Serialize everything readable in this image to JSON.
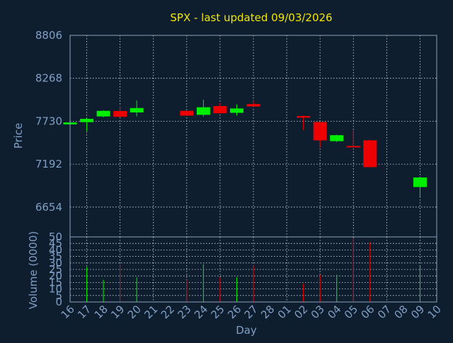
{
  "chart_data": {
    "type": "candlestick",
    "title": "SPX - last updated 09/03/2026",
    "xlabel": "Day",
    "ylabel_price": "Price",
    "ylabel_volume": "Volume (0000)",
    "x_ticks": [
      "16",
      "17",
      "18",
      "19",
      "20",
      "21",
      "22",
      "23",
      "24",
      "25",
      "26",
      "27",
      "28",
      "01",
      "02",
      "03",
      "04",
      "05",
      "06",
      "07",
      "08",
      "09",
      "10"
    ],
    "x_grid_ticks": [
      "17",
      "19",
      "21",
      "23",
      "25",
      "27",
      "01",
      "03",
      "05",
      "07",
      "09"
    ],
    "price_ticks": [
      8806,
      8268,
      7730,
      7192,
      6654
    ],
    "price_ylim": [
      6280,
      8806
    ],
    "volume_ticks": [
      0,
      5,
      10,
      15,
      20,
      25,
      30,
      35,
      40,
      45,
      50
    ],
    "volume_ylim": [
      0,
      50
    ],
    "grid": true,
    "colors": {
      "up": "#00ee00",
      "down": "#ee0000",
      "title": "#f2e600",
      "axis_text": "#7f9fc4",
      "background": "#0f1e2f"
    },
    "candles": [
      {
        "day": "16",
        "open": 7690,
        "close": 7715,
        "high": 7722,
        "low": 7685,
        "volume": 0
      },
      {
        "day": "17",
        "open": 7718,
        "close": 7760,
        "high": 7768,
        "low": 7605,
        "volume": 27
      },
      {
        "day": "18",
        "open": 7790,
        "close": 7860,
        "high": 7868,
        "low": 7780,
        "volume": 17
      },
      {
        "day": "19",
        "open": 7858,
        "close": 7785,
        "high": 7920,
        "low": 7775,
        "volume": 29
      },
      {
        "day": "20",
        "open": 7840,
        "close": 7895,
        "high": 7990,
        "low": 7790,
        "volume": 19
      },
      {
        "day": "23",
        "open": 7860,
        "close": 7800,
        "high": 7870,
        "low": 7795,
        "volume": 17
      },
      {
        "day": "24",
        "open": 7810,
        "close": 7905,
        "high": 8000,
        "low": 7790,
        "volume": 29
      },
      {
        "day": "25",
        "open": 7920,
        "close": 7830,
        "high": 7960,
        "low": 7825,
        "volume": 19
      },
      {
        "day": "26",
        "open": 7835,
        "close": 7890,
        "high": 7940,
        "low": 7800,
        "volume": 19
      },
      {
        "day": "27",
        "open": 7945,
        "close": 7915,
        "high": 7985,
        "low": 7910,
        "volume": 28
      },
      {
        "day": "02",
        "open": 7795,
        "close": 7775,
        "high": 7800,
        "low": 7620,
        "volume": 14
      },
      {
        "day": "03",
        "open": 7720,
        "close": 7490,
        "high": 7720,
        "low": 7400,
        "volume": 21
      },
      {
        "day": "04",
        "open": 7480,
        "close": 7555,
        "high": 7560,
        "low": 7470,
        "volume": 21
      },
      {
        "day": "05",
        "open": 7420,
        "close": 7410,
        "high": 7620,
        "low": 7405,
        "volume": 49
      },
      {
        "day": "06",
        "open": 7490,
        "close": 7155,
        "high": 7495,
        "low": 7150,
        "volume": 46
      },
      {
        "day": "09",
        "open": 6905,
        "close": 7025,
        "high": 7030,
        "low": 6780,
        "volume": 28
      }
    ]
  }
}
